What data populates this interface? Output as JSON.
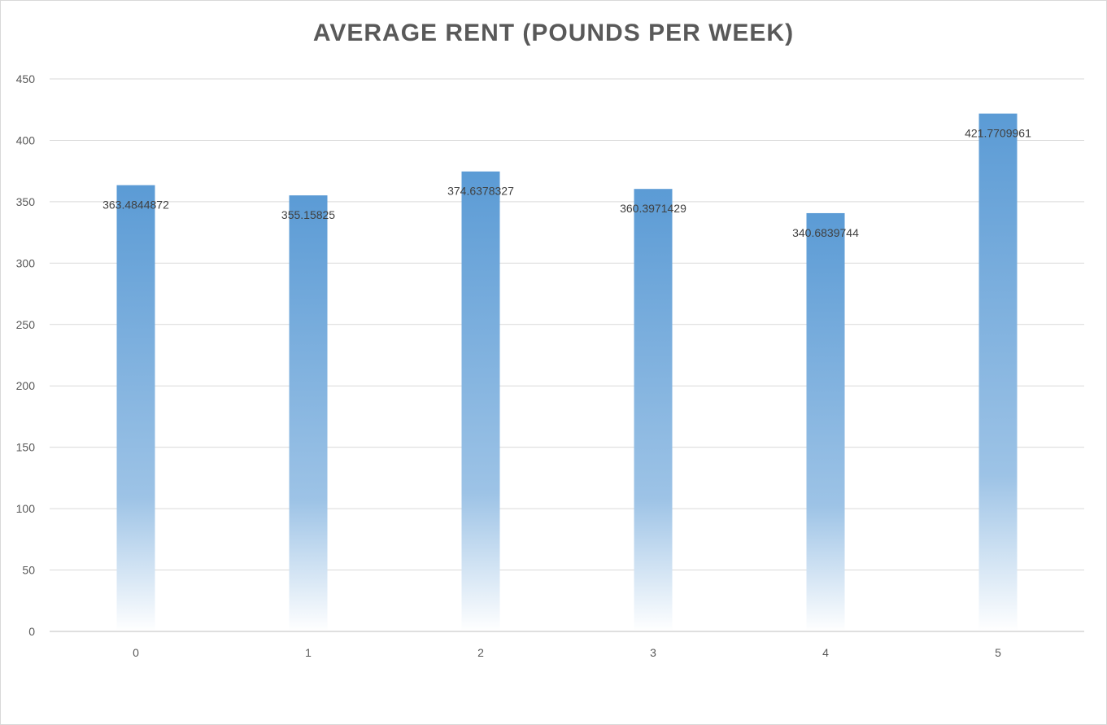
{
  "chart_data": {
    "type": "bar",
    "title": "AVERAGE RENT (POUNDS PER WEEK)",
    "xlabel": "",
    "ylabel": "",
    "categories": [
      "0",
      "1",
      "2",
      "3",
      "4",
      "5"
    ],
    "values": [
      363.4844872,
      355.15825,
      374.6378327,
      360.3971429,
      340.6839744,
      421.7709961
    ],
    "data_labels": [
      "363.4844872",
      "355.15825",
      "374.6378327",
      "360.3971429",
      "340.6839744",
      "421.7709961"
    ],
    "ylim": [
      0,
      450
    ],
    "y_ticks": [
      "0",
      "50",
      "100",
      "150",
      "200",
      "250",
      "300",
      "350",
      "400",
      "450"
    ],
    "grid": true,
    "legend": "none",
    "colors": {
      "bar_top": "#5b9bd5",
      "bar_mid": "#9dc3e6",
      "bar_bottom": "#ffffff",
      "grid": "#d9d9d9",
      "axis": "#bfbfbf",
      "text": "#595959"
    }
  }
}
